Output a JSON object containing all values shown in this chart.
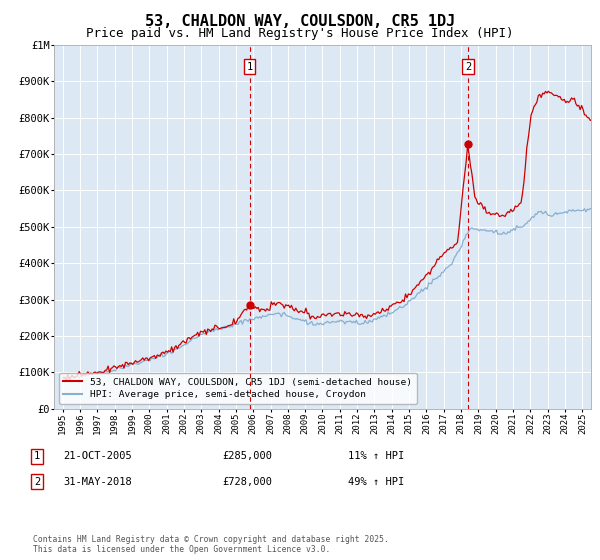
{
  "title": "53, CHALDON WAY, COULSDON, CR5 1DJ",
  "subtitle": "Price paid vs. HM Land Registry's House Price Index (HPI)",
  "legend_line1": "53, CHALDON WAY, COULSDON, CR5 1DJ (semi-detached house)",
  "legend_line2": "HPI: Average price, semi-detached house, Croydon",
  "footer": "Contains HM Land Registry data © Crown copyright and database right 2025.\nThis data is licensed under the Open Government Licence v3.0.",
  "sale1": {
    "label": "1",
    "date": "21-OCT-2005",
    "price": 285000,
    "price_str": "£285,000",
    "hpi_pct": "11% ↑ HPI",
    "year": 2005.8
  },
  "sale2": {
    "label": "2",
    "date": "31-MAY-2018",
    "price": 728000,
    "price_str": "£728,000",
    "hpi_pct": "49% ↑ HPI",
    "year": 2018.4
  },
  "ylim": [
    0,
    1000000
  ],
  "xlim": [
    1994.5,
    2025.5
  ],
  "background_color": "#dce9f5",
  "line_color_red": "#cc0000",
  "line_color_blue": "#88afd0",
  "grid_color": "#ffffff",
  "title_fontsize": 11,
  "subtitle_fontsize": 9
}
